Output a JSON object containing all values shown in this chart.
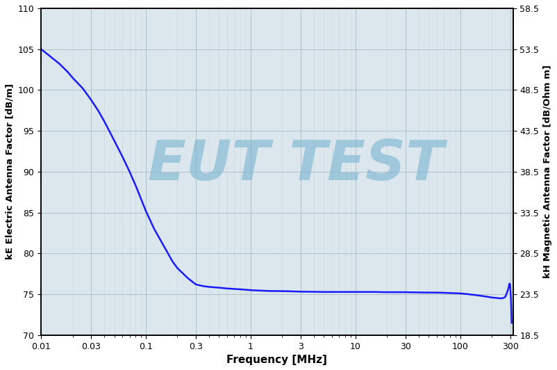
{
  "xlabel": "Frequency [MHz]",
  "ylabel_left": "kE Electric Antenna Factor [dB/m]",
  "ylabel_right": "kH Magnetic Antenna Factor [dB/Ohm m]",
  "watermark": "EUT TEST",
  "watermark_color": "#7fb8d4",
  "xlim_log": [
    0.01,
    320
  ],
  "ylim_left": [
    70,
    110
  ],
  "ylim_right": [
    18.5,
    58.5
  ],
  "yticks_left": [
    70,
    75,
    80,
    85,
    90,
    95,
    100,
    105,
    110
  ],
  "yticks_right": [
    18.5,
    23.5,
    28.5,
    33.5,
    38.5,
    43.5,
    48.5,
    53.5,
    58.5
  ],
  "xtick_positions": [
    0.01,
    0.03,
    0.1,
    0.3,
    1,
    3,
    10,
    30,
    100,
    300
  ],
  "xtick_labels": [
    "0.01",
    "0.03",
    "0.1",
    "0.3",
    "1",
    "3",
    "10",
    "30",
    "100",
    "300"
  ],
  "line_color": "#1a1aff",
  "line_width": 1.8,
  "fig_bg_color": "#ffffff",
  "plot_bg_color": "#dce6ed",
  "grid_color_major": "#b0bec5",
  "grid_color_minor": "#cdd8de",
  "curve_x": [
    0.01,
    0.012,
    0.015,
    0.018,
    0.02,
    0.025,
    0.03,
    0.035,
    0.04,
    0.05,
    0.06,
    0.07,
    0.08,
    0.1,
    0.12,
    0.15,
    0.18,
    0.2,
    0.25,
    0.3,
    0.35,
    0.4,
    0.5,
    0.6,
    0.7,
    0.8,
    1.0,
    1.2,
    1.5,
    2.0,
    2.5,
    3.0,
    4.0,
    5.0,
    6.0,
    8.0,
    10.0,
    15.0,
    20.0,
    30.0,
    40.0,
    50.0,
    60.0,
    80.0,
    100.0,
    120.0,
    150.0,
    180.0,
    200.0,
    220.0,
    240.0,
    250.0,
    260.0,
    270.0,
    280.0,
    290.0,
    295.0,
    300.0,
    305.0,
    310.0
  ],
  "curve_y": [
    105.0,
    104.2,
    103.2,
    102.2,
    101.5,
    100.2,
    98.8,
    97.5,
    96.2,
    93.8,
    91.8,
    90.0,
    88.3,
    85.2,
    83.0,
    80.8,
    79.0,
    78.2,
    77.0,
    76.2,
    76.0,
    75.9,
    75.8,
    75.7,
    75.65,
    75.6,
    75.5,
    75.45,
    75.4,
    75.38,
    75.35,
    75.32,
    75.3,
    75.28,
    75.28,
    75.28,
    75.28,
    75.28,
    75.25,
    75.25,
    75.22,
    75.2,
    75.2,
    75.15,
    75.1,
    75.0,
    74.85,
    74.7,
    74.6,
    74.55,
    74.5,
    74.5,
    74.55,
    74.7,
    75.2,
    75.8,
    76.3,
    76.2,
    74.5,
    71.5
  ]
}
